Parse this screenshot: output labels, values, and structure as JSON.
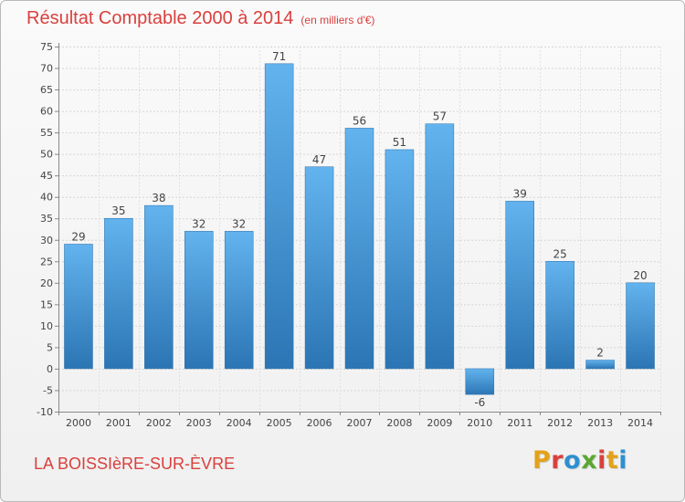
{
  "header": {
    "title": "Résultat Comptable 2000 à 2014",
    "unit": "(en milliers d'€)"
  },
  "footer": {
    "commune": "LA BOISSIèRE-SUR-ÈVRE",
    "logo_letters": [
      "P",
      "r",
      "o",
      "x",
      "i",
      "t",
      "i"
    ]
  },
  "colors": {
    "title": "#d9403d",
    "bar_light": "#5fb0ec",
    "bar_dark": "#2f79b8"
  },
  "chart_data": {
    "type": "bar",
    "title": "Résultat Comptable 2000 à 2014",
    "subtitle": "(en milliers d'€)",
    "xlabel": "",
    "ylabel": "",
    "categories": [
      "2000",
      "2001",
      "2002",
      "2003",
      "2004",
      "2005",
      "2006",
      "2007",
      "2008",
      "2009",
      "2010",
      "2011",
      "2012",
      "2013",
      "2014"
    ],
    "values": [
      29,
      35,
      38,
      32,
      32,
      71,
      47,
      56,
      51,
      57,
      -6,
      39,
      25,
      2,
      20
    ],
    "value_labels": [
      "29",
      "35",
      "38",
      "32",
      "32",
      "71",
      "47",
      "56",
      "51",
      "57",
      "-6",
      "39",
      "25",
      "2",
      "20"
    ],
    "ylim": [
      -10,
      75
    ],
    "yticks": [
      -10,
      -5,
      0,
      5,
      10,
      15,
      20,
      25,
      30,
      35,
      40,
      45,
      50,
      55,
      60,
      65,
      70,
      75
    ],
    "ytick_labels": [
      "-10",
      "-5",
      "0",
      "5",
      "10",
      "15",
      "20",
      "25",
      "30",
      "35",
      "40",
      "45",
      "50",
      "55",
      "60",
      "65",
      "70",
      "75"
    ],
    "grid": true,
    "legend": "none"
  }
}
